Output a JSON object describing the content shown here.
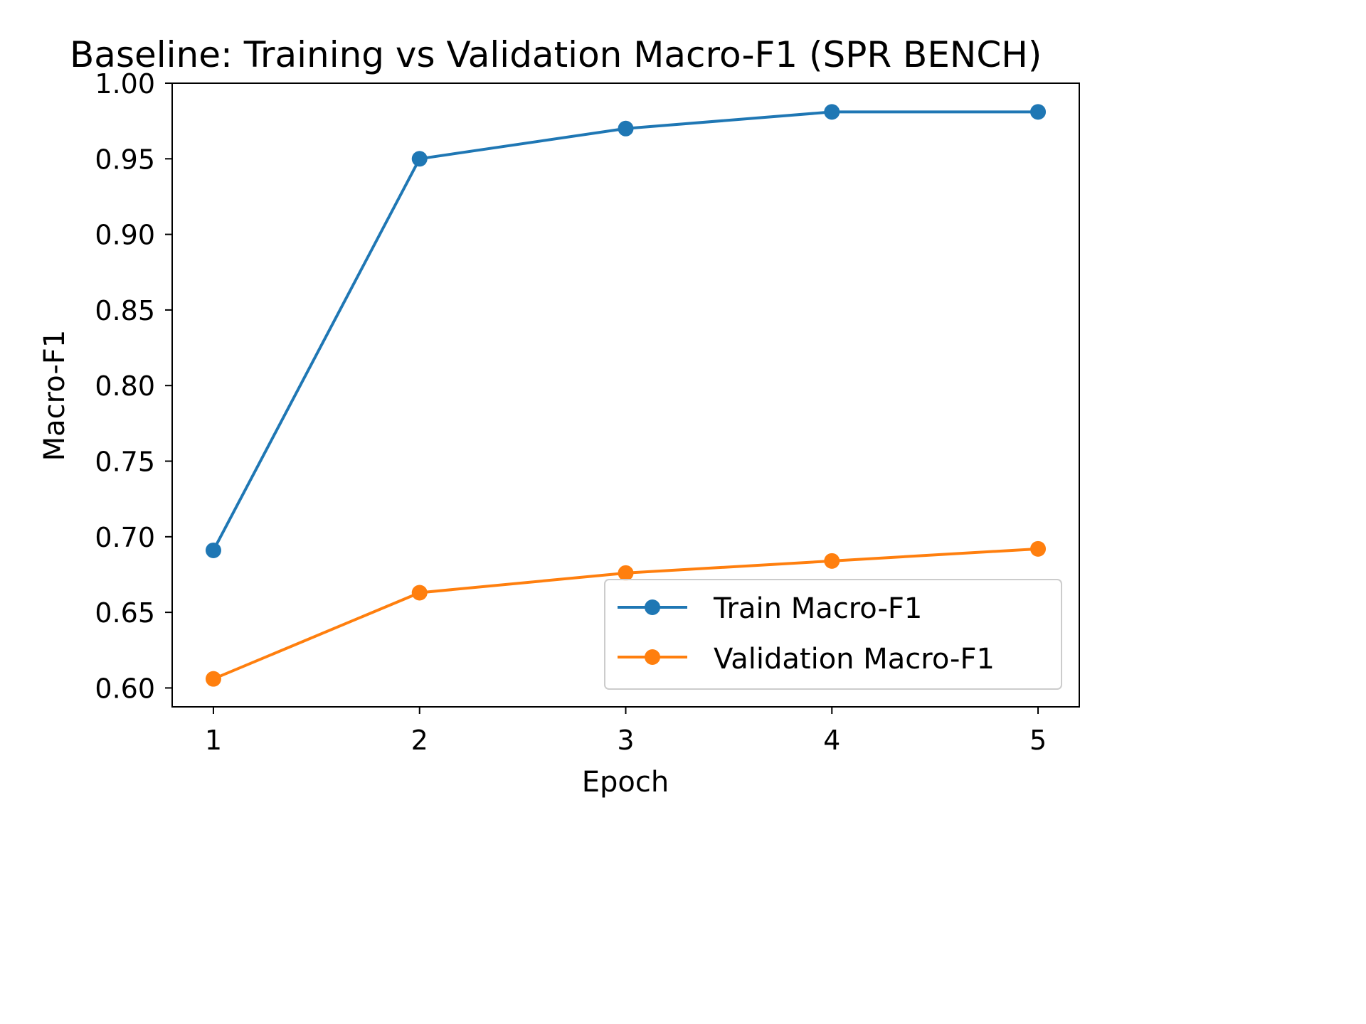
{
  "chart_data": {
    "type": "line",
    "title": "Baseline: Training vs Validation Macro-F1 (SPR BENCH)",
    "xlabel": "Epoch",
    "ylabel": "Macro-F1",
    "x": [
      1,
      2,
      3,
      4,
      5
    ],
    "xticks": [
      "1",
      "2",
      "3",
      "4",
      "5"
    ],
    "yticks": [
      "0.60",
      "0.65",
      "0.70",
      "0.75",
      "0.80",
      "0.85",
      "0.90",
      "0.95",
      "1.00"
    ],
    "ytick_values": [
      0.6,
      0.65,
      0.7,
      0.75,
      0.8,
      0.85,
      0.9,
      0.95,
      1.0
    ],
    "xlim": [
      0.8,
      5.2
    ],
    "ylim": [
      0.5875,
      1.0
    ],
    "grid": false,
    "legend_position": "lower-right",
    "series": [
      {
        "name": "Train Macro-F1",
        "color": "#1f77b4",
        "marker": "circle",
        "values": [
          0.691,
          0.95,
          0.97,
          0.981,
          0.981
        ]
      },
      {
        "name": "Validation Macro-F1",
        "color": "#ff7f0e",
        "marker": "circle",
        "values": [
          0.606,
          0.663,
          0.676,
          0.684,
          0.692
        ]
      }
    ]
  }
}
